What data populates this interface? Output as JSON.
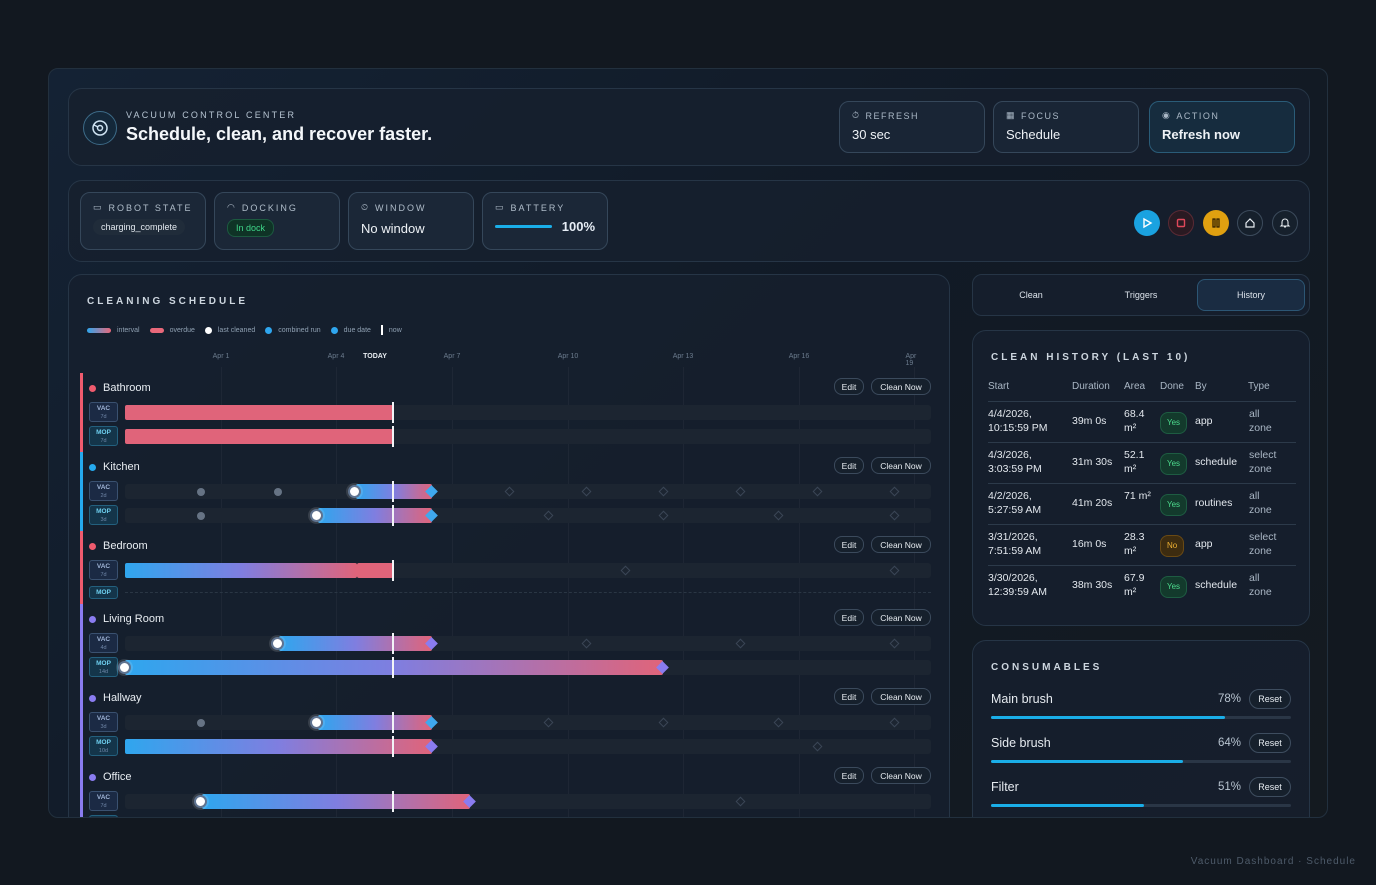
{
  "header": {
    "eyebrow": "VACUUM CONTROL CENTER",
    "title": "Schedule, clean, and recover faster.",
    "refresh_label": "REFRESH",
    "refresh_value": "30 sec",
    "focus_label": "FOCUS",
    "focus_value": "Schedule",
    "action_label": "ACTION",
    "action_value": "Refresh now"
  },
  "status": {
    "robot_state_label": "ROBOT STATE",
    "robot_state_value": "charging_complete",
    "docking_label": "DOCKING",
    "docking_value": "In dock",
    "window_label": "WINDOW",
    "window_value": "No window",
    "battery_label": "BATTERY",
    "battery_value": "100%",
    "battery_level": 1.0,
    "controls": [
      "play-icon",
      "stop-icon",
      "pause-icon",
      "home-icon",
      "bell-icon"
    ]
  },
  "schedule": {
    "title": "CLEANING SCHEDULE",
    "legend": [
      "interval",
      "overdue",
      "last cleaned",
      "combined run",
      "due date",
      "now"
    ],
    "ticks": [
      "Apr 1",
      "Apr 4",
      "TODAY",
      "Apr 7",
      "Apr 10",
      "Apr 13",
      "Apr 16",
      "Apr 19"
    ],
    "edit_label": "Edit",
    "clean_label": "Clean Now",
    "rooms": [
      {
        "name": "Bathroom",
        "color": "#ef5b6e",
        "lanes": [
          {
            "tag": "VAC",
            "interval": "7d"
          },
          {
            "tag": "MOP",
            "interval": "7d"
          }
        ]
      },
      {
        "name": "Kitchen",
        "color": "#25a9ee",
        "lanes": [
          {
            "tag": "VAC",
            "interval": "2d"
          },
          {
            "tag": "MOP",
            "interval": "3d"
          }
        ]
      },
      {
        "name": "Bedroom",
        "color": "#ef5b6e",
        "lanes": [
          {
            "tag": "VAC",
            "interval": "7d"
          },
          {
            "tag": "MOP",
            "interval": ""
          }
        ]
      },
      {
        "name": "Living Room",
        "color": "#8a7cf0",
        "lanes": [
          {
            "tag": "VAC",
            "interval": "4d"
          },
          {
            "tag": "MOP",
            "interval": "14d"
          }
        ]
      },
      {
        "name": "Hallway",
        "color": "#8a7cf0",
        "lanes": [
          {
            "tag": "VAC",
            "interval": "3d"
          },
          {
            "tag": "MOP",
            "interval": "10d"
          }
        ]
      },
      {
        "name": "Office",
        "color": "#8a7cf0",
        "lanes": [
          {
            "tag": "VAC",
            "interval": "7d"
          }
        ]
      }
    ]
  },
  "tabs": [
    "Clean",
    "Triggers",
    "History"
  ],
  "history": {
    "title": "CLEAN HISTORY (LAST 10)",
    "columns": [
      "Start",
      "Duration",
      "Area",
      "Done",
      "By",
      "Type"
    ],
    "rows": [
      {
        "start1": "4/4/2026,",
        "start2": "10:15:59 PM",
        "duration": "39m 0s",
        "area1": "68.4",
        "area2": "m²",
        "done": "Yes",
        "by": "app",
        "type1": "all",
        "type2": "zone"
      },
      {
        "start1": "4/3/2026,",
        "start2": "3:03:59 PM",
        "duration": "31m 30s",
        "area1": "52.1",
        "area2": "m²",
        "done": "Yes",
        "by": "schedule",
        "type1": "select",
        "type2": "zone"
      },
      {
        "start1": "4/2/2026,",
        "start2": "5:27:59 AM",
        "duration": "41m 20s",
        "area1": "71 m²",
        "area2": "",
        "done": "Yes",
        "by": "routines",
        "type1": "all",
        "type2": "zone"
      },
      {
        "start1": "3/31/2026,",
        "start2": "7:51:59 AM",
        "duration": "16m 0s",
        "area1": "28.3",
        "area2": "m²",
        "done": "No",
        "by": "app",
        "type1": "select",
        "type2": "zone"
      },
      {
        "start1": "3/30/2026,",
        "start2": "12:39:59 AM",
        "duration": "38m 30s",
        "area1": "67.9",
        "area2": "m²",
        "done": "Yes",
        "by": "schedule",
        "type1": "all",
        "type2": "zone"
      }
    ]
  },
  "consumables": {
    "title": "CONSUMABLES",
    "reset_label": "Reset",
    "items": [
      {
        "name": "Main brush",
        "percent": "78%",
        "level": 0.78
      },
      {
        "name": "Side brush",
        "percent": "64%",
        "level": 0.64
      },
      {
        "name": "Filter",
        "percent": "51%",
        "level": 0.51
      }
    ]
  },
  "footer": "Vacuum Dashboard · Schedule"
}
